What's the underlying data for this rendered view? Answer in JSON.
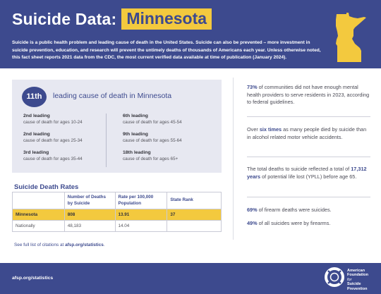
{
  "header": {
    "title_prefix": "Suicide Data:",
    "state": "Minnesota",
    "intro": "Suicide is a public health problem and leading cause of death in the United States. Suicide can also be prevented – more investment in suicide prevention, education, and research will prevent the untimely deaths of thousands of Americans each year. Unless otherwise noted, this fact sheet reports 2021 data from the CDC, the most current verified data available at time of publication (January 2024)."
  },
  "rank": {
    "overall": "11th",
    "overall_text": "leading cause of death in Minnesota",
    "items": [
      {
        "rank": "2nd leading",
        "ages": "cause of death for ages 10-24"
      },
      {
        "rank": "2nd leading",
        "ages": "cause of death for ages 25-34"
      },
      {
        "rank": "3rd leading",
        "ages": "cause of death for ages 35-44"
      },
      {
        "rank": "6th leading",
        "ages": "cause of death for ages 45-54"
      },
      {
        "rank": "9th leading",
        "ages": "cause of death for ages 55-64"
      },
      {
        "rank": "18th leading",
        "ages": "cause of death for ages 65+"
      }
    ]
  },
  "rates": {
    "title": "Suicide Death Rates",
    "headers": [
      "",
      "Number of Deaths by Suicide",
      "Rate per 100,000 Population",
      "State Rank"
    ],
    "rows": [
      {
        "label": "Minnesota",
        "deaths": "808",
        "rate": "13.91",
        "rank": "37"
      },
      {
        "label": "Nationally",
        "deaths": "48,183",
        "rate": "14.04",
        "rank": ""
      }
    ]
  },
  "citation": {
    "prefix": "See full list of citations at ",
    "link": "afsp.org/statistics",
    "suffix": "."
  },
  "stats": {
    "s1_hl": "73%",
    "s1_rest": " of communities did not have enough mental health providers to serve residents in 2023, according to federal guidelines.",
    "s2_pre": "Over ",
    "s2_hl": "six times",
    "s2_rest": " as many people died by suicide than in alcohol related motor vehicle accidents.",
    "s3_pre": "The total deaths to suicide reflected a total of ",
    "s3_hl": "17,312 years",
    "s3_rest": " of potential life lost (YPLL) before age 65.",
    "s4_hl": "69%",
    "s4_rest": " of firearm deaths were suicides.",
    "s5_hl": "49%",
    "s5_rest": " of all suicides were by firearms."
  },
  "footer": {
    "url": "afsp.org/statistics",
    "logo_line1": "American",
    "logo_line2": "Foundation",
    "logo_line3": "for",
    "logo_line4": "Suicide",
    "logo_line5": "Prevention",
    "logo_icon": "lifebuoy-icon"
  },
  "colors": {
    "primary": "#3d4a8e",
    "accent": "#f3c93e",
    "panel": "#e7e8f1"
  }
}
